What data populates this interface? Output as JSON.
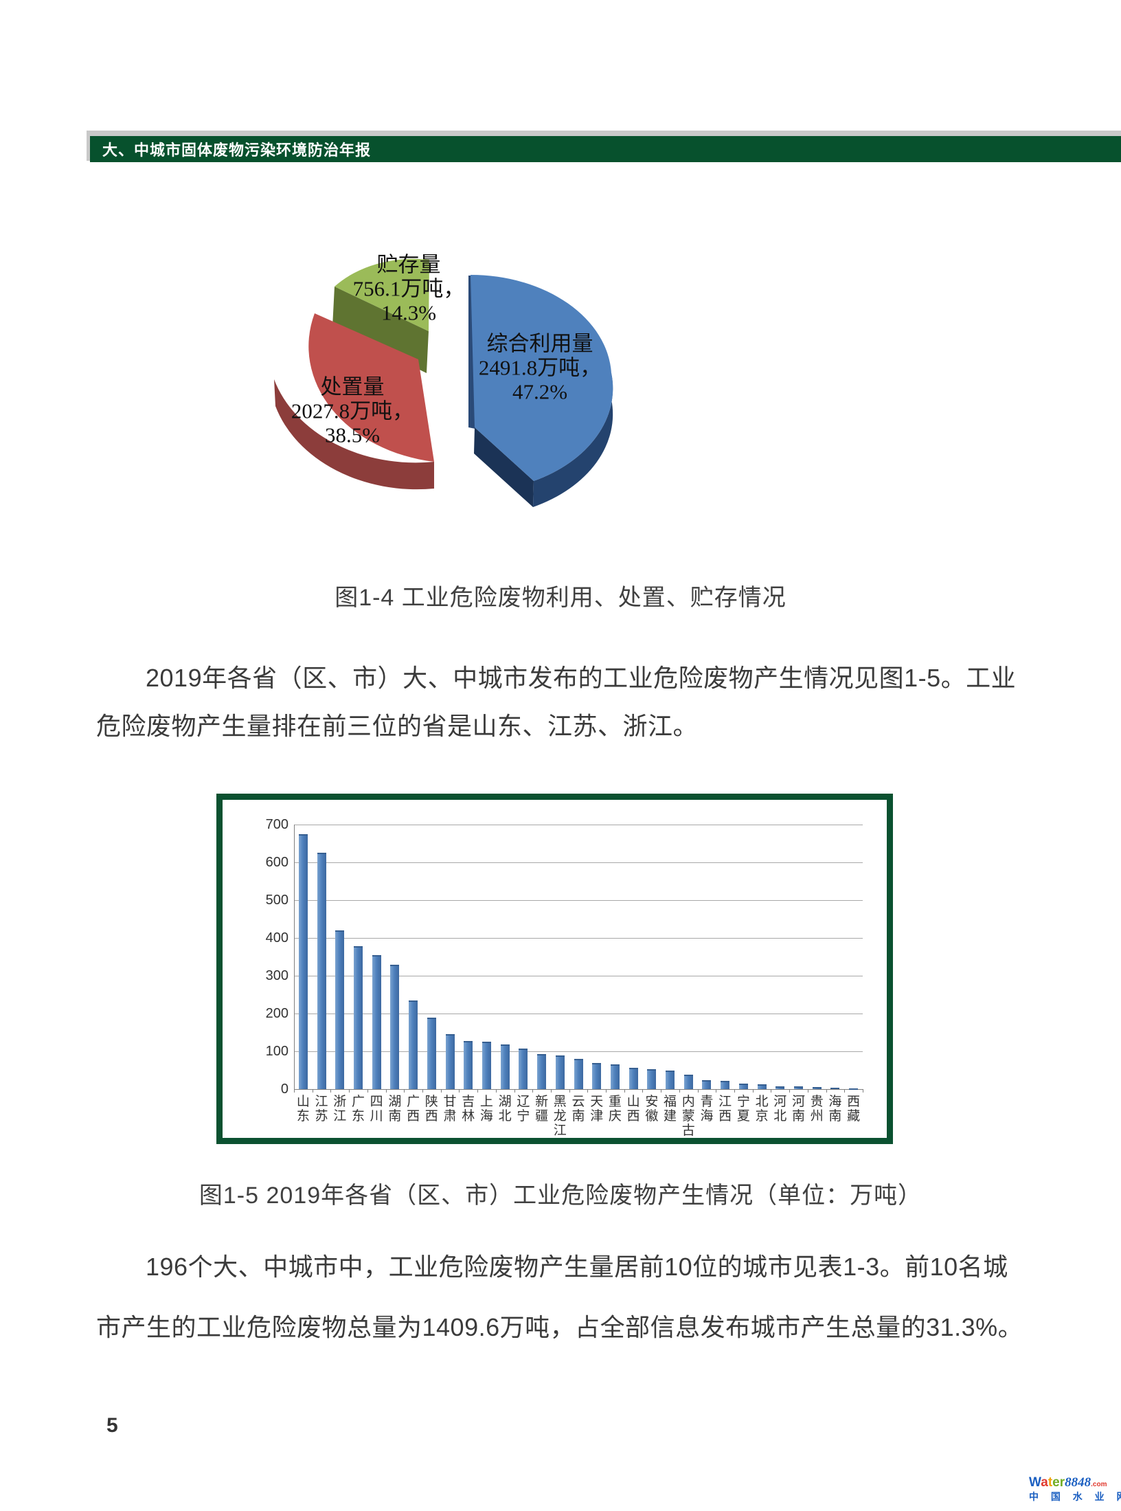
{
  "header": {
    "title": "大、中城市固体废物污染环境防治年报"
  },
  "pie_figure": {
    "caption": "图1-4  工业危险废物利用、处置、贮存情况",
    "chart_data": {
      "type": "pie",
      "title": "工业危险废物利用、处置、贮存情况",
      "unit": "万吨",
      "slices": [
        {
          "label": "综合利用量",
          "value": 2491.8,
          "value_text": "2491.8万吨，",
          "pct": 47.2,
          "pct_text": "47.2%",
          "color": "#4f81bd"
        },
        {
          "label": "处置量",
          "value": 2027.8,
          "value_text": "2027.8万吨，",
          "pct": 38.5,
          "pct_text": "38.5%",
          "color": "#c0504d"
        },
        {
          "label": "贮存量",
          "value": 756.1,
          "value_text": "756.1万吨，",
          "pct": 14.3,
          "pct_text": "14.3%",
          "color": "#9bbb59"
        }
      ]
    }
  },
  "paragraphs": {
    "p1_lines": [
      "2019年各省（区、市）大、中城市发布的工业危险废物产生情况见图1-5。工业",
      "危险废物产生量排在前三位的省是山东、江苏、浙江。"
    ],
    "p2_lines": [
      "196个大、中城市中，工业危险废物产生量居前10位的城市见表1-3。前10名城",
      "市产生的工业危险废物总量为1409.6万吨，占全部信息发布城市产生总量的31.3%。"
    ]
  },
  "bar_figure": {
    "caption": "图1-5 2019年各省（区、市）工业危险废物产生情况（单位：万吨）",
    "chart_data": {
      "type": "bar",
      "title": "2019年各省（区、市）工业危险废物产生情况",
      "unit": "万吨",
      "ylim": [
        0,
        700
      ],
      "ytick_step": 100,
      "grid": true,
      "series_color": "#4f81bd",
      "categories": [
        "山东",
        "江苏",
        "浙江",
        "广东",
        "四川",
        "湖南",
        "广西",
        "陕西",
        "甘肃",
        "吉林",
        "上海",
        "湖北",
        "辽宁",
        "新疆",
        "黑龙江",
        "云南",
        "天津",
        "重庆",
        "山西",
        "安徽",
        "福建",
        "内蒙古",
        "青海",
        "江西",
        "宁夏",
        "北京",
        "河北",
        "河南",
        "贵州",
        "海南",
        "西藏"
      ],
      "values": [
        675,
        625,
        420,
        378,
        355,
        330,
        235,
        190,
        145,
        127,
        126,
        119,
        108,
        93,
        89,
        80,
        70,
        66,
        57,
        52,
        50,
        38,
        23,
        22,
        14,
        13,
        8,
        8,
        5,
        3,
        1
      ]
    }
  },
  "footer": {
    "page_number": "5"
  },
  "watermark": {
    "brand": [
      {
        "ch": "W",
        "color": "#1b5fc1"
      },
      {
        "ch": "a",
        "color": "#e0392e"
      },
      {
        "ch": "t",
        "color": "#f0a30a"
      },
      {
        "ch": "e",
        "color": "#71ad24"
      },
      {
        "ch": "r",
        "color": "#71ad24"
      }
    ],
    "numbers": "8848",
    "numbers_color": "#1b5fc1",
    "tld": ".com",
    "tld_color": "#e0392e",
    "subtitle": "中 国 水 业 网",
    "subtitle_color": "#1b5fc1"
  }
}
